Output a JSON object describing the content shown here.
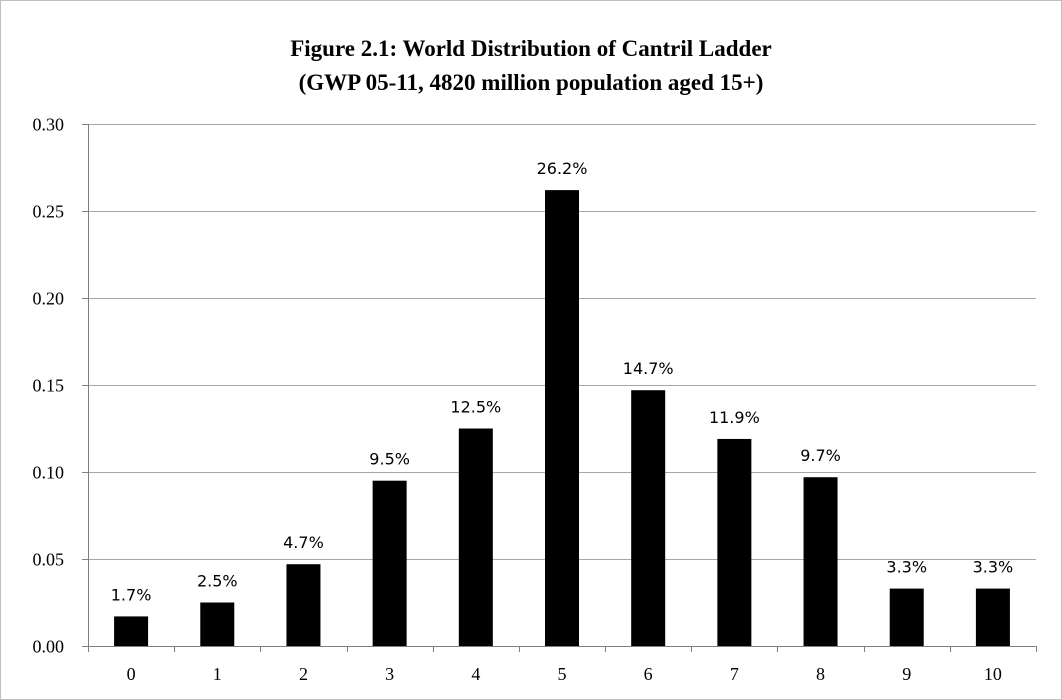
{
  "chart_data": {
    "type": "bar",
    "title": "Figure 2.1: World Distribution of Cantril Ladder",
    "subtitle": "(GWP 05-11, 4820 million population aged 15+)",
    "categories": [
      "0",
      "1",
      "2",
      "3",
      "4",
      "5",
      "6",
      "7",
      "8",
      "9",
      "10"
    ],
    "values": [
      0.017,
      0.025,
      0.047,
      0.095,
      0.125,
      0.262,
      0.147,
      0.119,
      0.097,
      0.033,
      0.033
    ],
    "data_labels": [
      "1.7%",
      "2.5%",
      "4.7%",
      "9.5%",
      "12.5%",
      "26.2%",
      "14.7%",
      "11.9%",
      "9.7%",
      "3.3%",
      "3.3%"
    ],
    "yticks": [
      "0.00",
      "0.05",
      "0.10",
      "0.15",
      "0.20",
      "0.25",
      "0.30"
    ],
    "ylim": [
      0,
      0.3
    ],
    "xlabel": "",
    "ylabel": "",
    "grid": true,
    "legend": "none",
    "bar_color": "#000000",
    "gridline_color": "#a6a6a6"
  }
}
